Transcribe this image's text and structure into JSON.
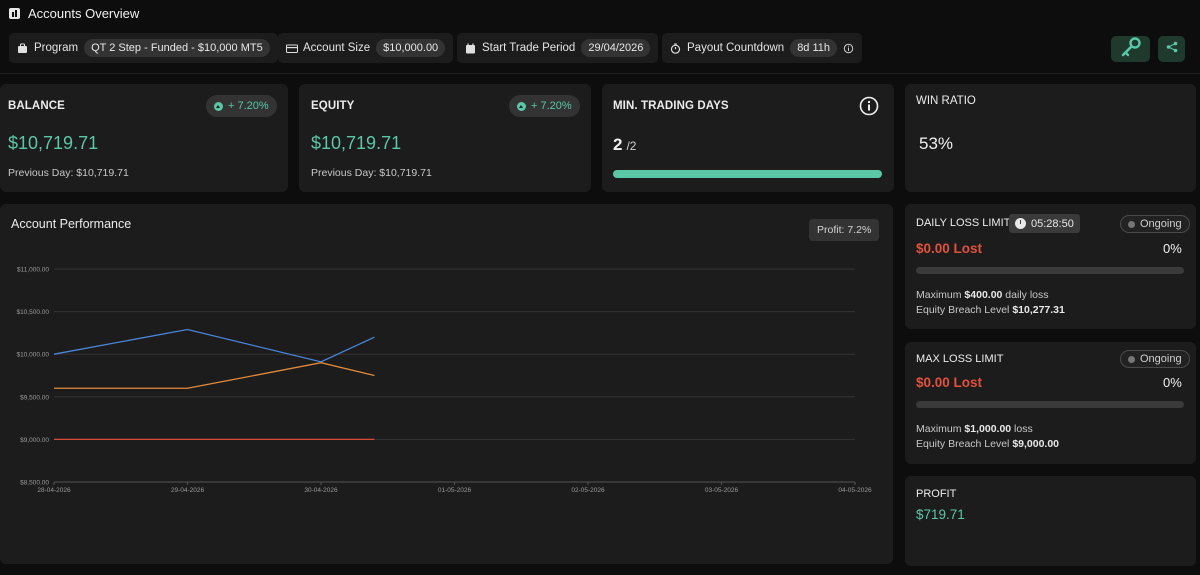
{
  "header": {
    "title": "Accounts Overview",
    "program": {
      "label": "Program",
      "value": "QT 2 Step - Funded - $10,000 MT5"
    },
    "account_size": {
      "label": "Account Size",
      "value": "$10,000.00"
    },
    "start_trade": {
      "label": "Start Trade Period",
      "value": "29/04/2026"
    },
    "payout": {
      "label": "Payout Countdown",
      "value": "8d 11h"
    }
  },
  "balance": {
    "label": "BALANCE",
    "change": "+ 7.20%",
    "value": "$10,719.71",
    "previous": "Previous Day: $10,719.71"
  },
  "equity": {
    "label": "EQUITY",
    "change": "+ 7.20%",
    "value": "$10,719.71",
    "previous": "Previous Day: $10,719.71"
  },
  "min_days": {
    "label": "MIN. TRADING DAYS",
    "count": "2",
    "total": "/2",
    "progress": 1.0
  },
  "win_ratio": {
    "label": "WIN RATIO",
    "value": "53%"
  },
  "daily_loss": {
    "label": "DAILY LOSS LIMIT",
    "timer": "05:28:50",
    "status": "Ongoing",
    "lost": "$0.00 Lost",
    "percent": "0%",
    "progress": 0,
    "max_prefix": "Maximum ",
    "max_value": "$400.00",
    "max_suffix": " daily loss",
    "breach_prefix": "Equity Breach Level ",
    "breach_value": "$10,277.31"
  },
  "max_loss": {
    "label": "MAX LOSS LIMIT",
    "status": "Ongoing",
    "lost": "$0.00 Lost",
    "percent": "0%",
    "progress": 0,
    "max_prefix": "Maximum ",
    "max_value": "$1,000.00",
    "max_suffix": " loss",
    "breach_prefix": "Equity Breach Level ",
    "breach_value": "$9,000.00"
  },
  "profit": {
    "label": "PROFIT",
    "value": "$719.71"
  },
  "performance": {
    "title": "Account Performance",
    "profit_tag": "Profit: 7.2%"
  },
  "colors": {
    "accent": "#5ac7a7",
    "loss": "#e0513e",
    "series_blue": "#4a86d9",
    "series_orange": "#e08a3c",
    "series_red": "#d94a3b"
  },
  "chart_data": {
    "type": "line",
    "categories": [
      "28-04-2026",
      "29-04-2026",
      "30-04-2026",
      "01-05-2026",
      "02-05-2026",
      "03-05-2026",
      "04-05-2026"
    ],
    "y_ticks": [
      "$11,000.00",
      "$10,500.00",
      "$10,000.00",
      "$9,500.00",
      "$9,000.00",
      "$8,500.00"
    ],
    "ylim": [
      8500,
      11000
    ],
    "grid": true,
    "series": [
      {
        "color": "#4a86d9",
        "x": [
          0,
          1,
          2,
          2.4
        ],
        "values": [
          10000,
          10290,
          9910,
          10200
        ]
      },
      {
        "color": "#e08a3c",
        "x": [
          0,
          1,
          2,
          2.4
        ],
        "values": [
          9600,
          9600,
          9900,
          9750
        ]
      },
      {
        "color": "#d94a3b",
        "x": [
          0,
          1,
          2,
          2.4
        ],
        "values": [
          9000,
          9000,
          9000,
          9000
        ]
      }
    ]
  }
}
